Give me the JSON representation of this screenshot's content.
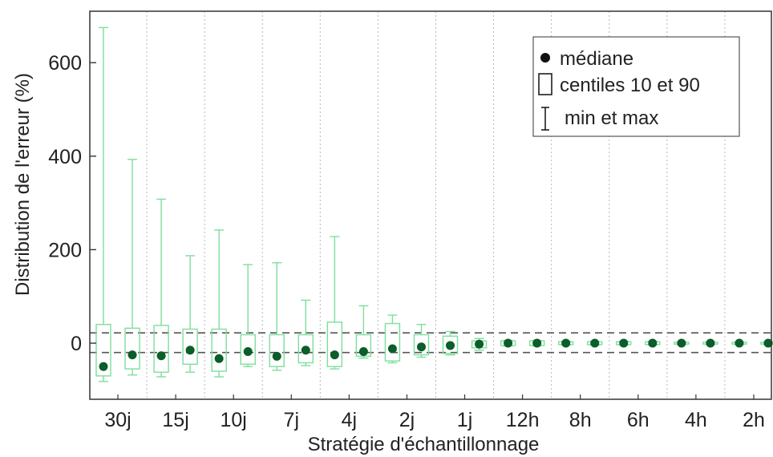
{
  "chart_data": {
    "type": "box",
    "xlabel": "Stratégie d'échantillonnage",
    "ylabel": "Distribution de l'erreur (%)",
    "ylim": [
      -120,
      710
    ],
    "yticks": [
      0,
      200,
      400,
      600
    ],
    "x_ticks": [
      "30j",
      "15j",
      "10j",
      "7j",
      "4j",
      "2j",
      "1j",
      "12h",
      "8h",
      "6h",
      "4h",
      "2h"
    ],
    "reference_lines": [
      22,
      -20
    ],
    "grid": "vertical dotted lines between tick groups",
    "legend": {
      "position": "top-right",
      "entries": [
        "médiane",
        "centiles 10 et 90",
        "min et max"
      ]
    },
    "colors": {
      "box": "#7ede9c",
      "median": "#0b5d2a",
      "reference": "#555555",
      "grid": "#b8b8b8",
      "axis": "#333333"
    },
    "boxes": [
      {
        "median": -50,
        "p10": -70,
        "p90": 40,
        "min": -82,
        "max": 675
      },
      {
        "median": -25,
        "p10": -55,
        "p90": 32,
        "min": -68,
        "max": 393
      },
      {
        "median": -27,
        "p10": -62,
        "p90": 38,
        "min": -72,
        "max": 308
      },
      {
        "median": -15,
        "p10": -45,
        "p90": 30,
        "min": -62,
        "max": 187
      },
      {
        "median": -33,
        "p10": -60,
        "p90": 30,
        "min": -72,
        "max": 242
      },
      {
        "median": -18,
        "p10": -45,
        "p90": 18,
        "min": -50,
        "max": 168
      },
      {
        "median": -28,
        "p10": -50,
        "p90": 18,
        "min": -58,
        "max": 172
      },
      {
        "median": -15,
        "p10": -42,
        "p90": 18,
        "min": -48,
        "max": 92
      },
      {
        "median": -25,
        "p10": -50,
        "p90": 45,
        "min": -55,
        "max": 228
      },
      {
        "median": -18,
        "p10": -28,
        "p90": 18,
        "min": -32,
        "max": 80
      },
      {
        "median": -12,
        "p10": -38,
        "p90": 42,
        "min": -42,
        "max": 60
      },
      {
        "median": -8,
        "p10": -25,
        "p90": 18,
        "min": -30,
        "max": 40
      },
      {
        "median": -5,
        "p10": -22,
        "p90": 15,
        "min": -25,
        "max": 25
      },
      {
        "median": -2,
        "p10": -10,
        "p90": 5,
        "min": -15,
        "max": 10
      },
      {
        "median": 0,
        "p10": -5,
        "p90": 5,
        "min": -6,
        "max": 6
      },
      {
        "median": 0,
        "p10": -5,
        "p90": 5,
        "min": -6,
        "max": 6
      },
      {
        "median": 0,
        "p10": -3,
        "p90": 3,
        "min": -4,
        "max": 4
      },
      {
        "median": 0,
        "p10": -3,
        "p90": 3,
        "min": -4,
        "max": 4
      },
      {
        "median": 0,
        "p10": -3,
        "p90": 3,
        "min": -4,
        "max": 4
      },
      {
        "median": 0,
        "p10": -3,
        "p90": 3,
        "min": -4,
        "max": 4
      },
      {
        "median": 0,
        "p10": -2,
        "p90": 2,
        "min": -3,
        "max": 3
      },
      {
        "median": 0,
        "p10": -2,
        "p90": 2,
        "min": -3,
        "max": 3
      },
      {
        "median": 0,
        "p10": -2,
        "p90": 2,
        "min": -3,
        "max": 3
      },
      {
        "median": 0,
        "p10": -2,
        "p90": 2,
        "min": -3,
        "max": 3
      }
    ]
  }
}
